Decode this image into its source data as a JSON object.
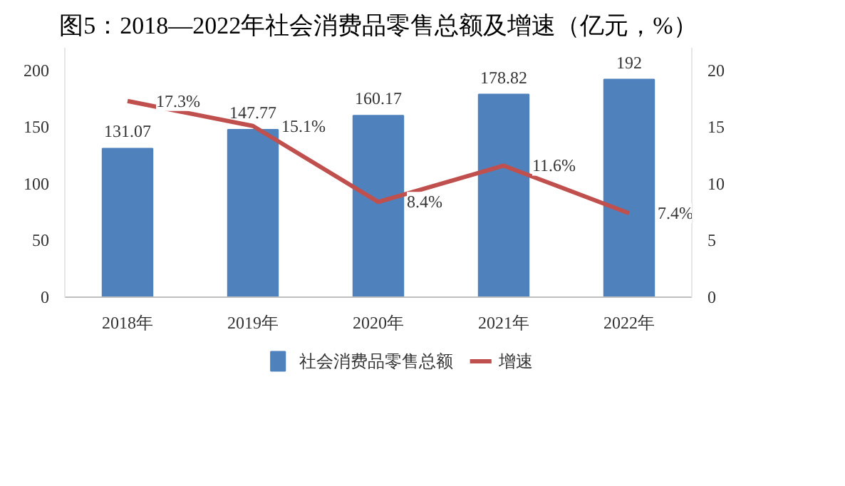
{
  "chart_data": {
    "type": "bar",
    "title": "图5：2018—2022年社会消费品零售总额及增速（亿元，%）",
    "categories": [
      "2018年",
      "2019年",
      "2020年",
      "2021年",
      "2022年"
    ],
    "series": [
      {
        "name": "社会消费品零售总额",
        "color": "#4f81bd",
        "values": [
          131.07,
          147.77,
          160.17,
          178.82,
          192
        ],
        "value_labels": [
          "131.07",
          "147.77",
          "160.17",
          "178.82",
          "192"
        ]
      },
      {
        "name": "增速",
        "type": "line",
        "axis": "y2",
        "color": "#c0504d",
        "values": [
          17.3,
          15.1,
          8.4,
          11.6,
          7.4
        ],
        "value_labels": [
          "17.3%",
          "15.1%",
          "8.4%",
          "11.6%",
          "7.4%"
        ]
      }
    ],
    "ylim": [
      0,
      220
    ],
    "yticks": [
      0,
      50,
      100,
      150,
      200
    ],
    "y2lim": [
      0,
      22
    ],
    "y2ticks": [
      0,
      5,
      10,
      15,
      20
    ],
    "grid": false,
    "legend": "bottom",
    "marker": "none",
    "line_style": "solid"
  }
}
